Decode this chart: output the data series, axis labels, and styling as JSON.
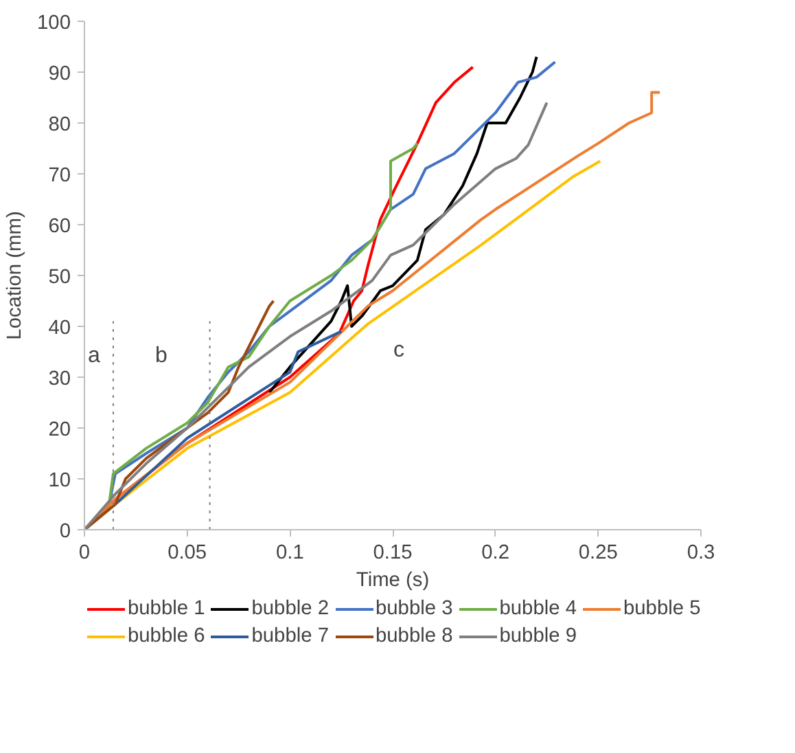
{
  "chart_data": {
    "type": "line",
    "xlabel": "Time (s)",
    "ylabel": "Location (mm)",
    "xlim": [
      0,
      0.3
    ],
    "xticks": [
      0,
      0.05,
      0.1,
      0.15,
      0.2,
      0.25,
      0.3
    ],
    "ylim": [
      0,
      100
    ],
    "yticks": [
      0,
      10,
      20,
      30,
      40,
      50,
      60,
      70,
      80,
      90,
      100
    ],
    "grid": false,
    "legend": "bottom",
    "line_style": "solid",
    "annotations": [
      "a",
      "b",
      "c"
    ],
    "series": [
      {
        "name": "bubble 1",
        "color": "#ff0000",
        "x": [
          0,
          0.015,
          0.05,
          0.1,
          0.124,
          0.131,
          0.135,
          0.138,
          0.144,
          0.151,
          0.162,
          0.171,
          0.18,
          0.189
        ],
        "values": [
          0,
          6,
          17,
          30,
          38.6,
          45,
          47,
          52,
          61,
          67,
          76,
          84,
          88,
          91
        ]
      },
      {
        "name": "bubble 2",
        "color": "#000000",
        "x": [
          0.09,
          0.1,
          0.12,
          0.125,
          0.128,
          0.13,
          0.135,
          0.144,
          0.15,
          0.162,
          0.166,
          0.175,
          0.184,
          0.191,
          0.196,
          0.205,
          0.212,
          0.218,
          0.22
        ],
        "values": [
          27,
          32,
          41,
          45,
          48,
          40,
          42,
          47,
          48,
          53,
          59,
          62,
          67.6,
          74,
          80,
          80,
          85,
          90,
          93
        ]
      },
      {
        "name": "bubble 3",
        "color": "#4472c4",
        "x": [
          0,
          0.012,
          0.015,
          0.03,
          0.05,
          0.06,
          0.07,
          0.08,
          0.09,
          0.1,
          0.11,
          0.12,
          0.13,
          0.14,
          0.149,
          0.16,
          0.166,
          0.18,
          0.19,
          0.2,
          0.211,
          0.22,
          0.229
        ],
        "values": [
          0,
          5,
          11,
          15,
          20,
          26,
          31,
          35,
          40,
          43,
          46,
          49,
          54,
          57,
          63,
          66,
          71,
          74,
          78,
          82,
          88,
          89,
          92
        ]
      },
      {
        "name": "bubble 4",
        "color": "#70ad47",
        "x": [
          0,
          0.012,
          0.014,
          0.03,
          0.05,
          0.06,
          0.07,
          0.08,
          0.09,
          0.1,
          0.12,
          0.13,
          0.14,
          0.149,
          0.149,
          0.16,
          0.162
        ],
        "values": [
          0,
          5,
          11,
          16,
          21,
          25,
          32,
          34,
          40,
          45,
          50,
          53,
          57,
          63,
          72.5,
          75,
          76
        ]
      },
      {
        "name": "bubble 5",
        "color": "#ed7d31",
        "x": [
          0,
          0.015,
          0.05,
          0.1,
          0.138,
          0.15,
          0.193,
          0.2,
          0.24,
          0.25,
          0.265,
          0.276,
          0.276,
          0.28
        ],
        "values": [
          0,
          6,
          17,
          29,
          44,
          47,
          61,
          63,
          73.5,
          76,
          80,
          82,
          86,
          86
        ]
      },
      {
        "name": "bubble 6",
        "color": "#ffc000",
        "x": [
          0,
          0.015,
          0.05,
          0.1,
          0.138,
          0.193,
          0.238,
          0.251
        ],
        "values": [
          0,
          5,
          16,
          27,
          40.5,
          56,
          69.5,
          72.5
        ]
      },
      {
        "name": "bubble 7",
        "color": "#2e5d9e",
        "x": [
          0,
          0.015,
          0.05,
          0.1,
          0.104,
          0.125
        ],
        "values": [
          0,
          5,
          18,
          31,
          35,
          39
        ]
      },
      {
        "name": "bubble 8",
        "color": "#9e480e",
        "x": [
          0,
          0.015,
          0.02,
          0.03,
          0.05,
          0.06,
          0.07,
          0.075,
          0.08,
          0.085,
          0.09,
          0.092
        ],
        "values": [
          0,
          5,
          10,
          14,
          20,
          23,
          27,
          32,
          36,
          40,
          44,
          45
        ]
      },
      {
        "name": "bubble 9",
        "color": "#7f7f7f",
        "x": [
          0,
          0.015,
          0.03,
          0.05,
          0.06,
          0.07,
          0.08,
          0.1,
          0.12,
          0.14,
          0.149,
          0.16,
          0.17,
          0.18,
          0.2,
          0.21,
          0.216,
          0.225
        ],
        "values": [
          0,
          7,
          13,
          20,
          24,
          28,
          32,
          38,
          43,
          49,
          54,
          56,
          60,
          64,
          71,
          73,
          75.7,
          84
        ]
      },
      {
        "color": "#808080",
        "line_style": "dotted",
        "x": [
          0.014,
          0.014
        ],
        "values": [
          0,
          41
        ]
      },
      {
        "color": "#808080",
        "line_style": "dotted",
        "x": [
          0.061,
          0.061
        ],
        "values": [
          0,
          41
        ]
      }
    ]
  }
}
